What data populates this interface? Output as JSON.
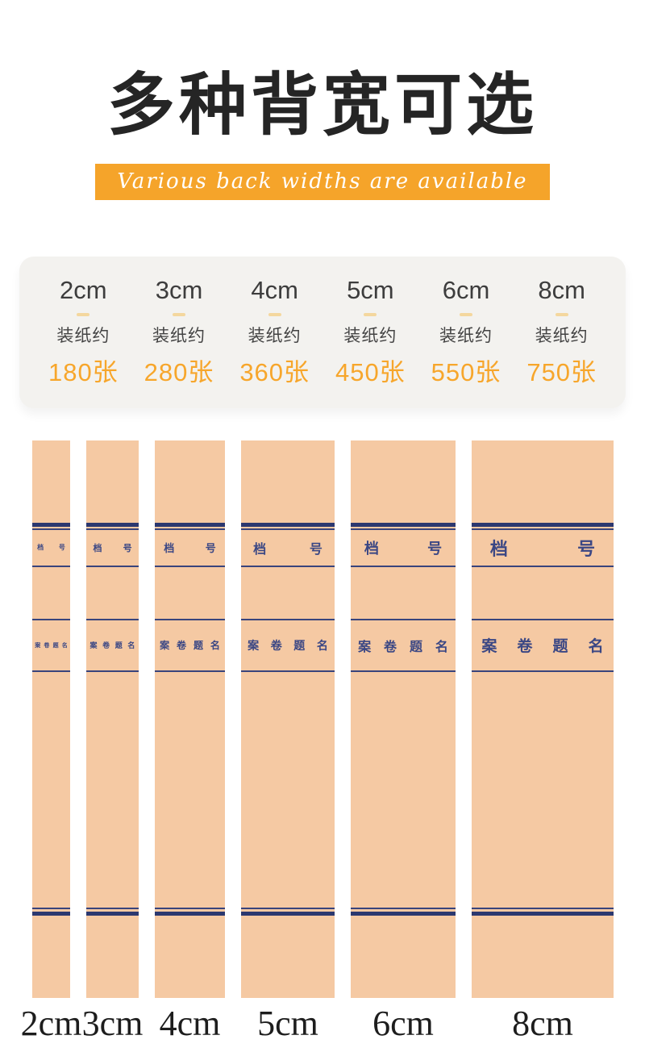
{
  "header": {
    "title": "多种背宽可选",
    "subtitle": "Various back widths are available"
  },
  "specs_card": {
    "columns": [
      {
        "size": "2cm",
        "note": "装纸约",
        "sheets": "180张"
      },
      {
        "size": "3cm",
        "note": "装纸约",
        "sheets": "280张"
      },
      {
        "size": "4cm",
        "note": "装纸约",
        "sheets": "360张"
      },
      {
        "size": "5cm",
        "note": "装纸约",
        "sheets": "450张"
      },
      {
        "size": "6cm",
        "note": "装纸约",
        "sheets": "550张"
      },
      {
        "size": "8cm",
        "note": "装纸约",
        "sheets": "750张"
      }
    ]
  },
  "spines": {
    "file_number_label": "档号",
    "file_title_label": "案卷题名",
    "items": [
      {
        "label": "2cm"
      },
      {
        "label": "3cm"
      },
      {
        "label": "4cm"
      },
      {
        "label": "5cm"
      },
      {
        "label": "6cm"
      },
      {
        "label": "8cm"
      }
    ]
  },
  "colors": {
    "banner_orange": "#F5A42A",
    "value_orange": "#F7A62B",
    "card_background": "#F3F2EF",
    "spine_paper": "#F5C9A3",
    "spine_line_navy": "#2C386F",
    "spine_text_navy": "#3B4784",
    "title_black": "#252525"
  }
}
